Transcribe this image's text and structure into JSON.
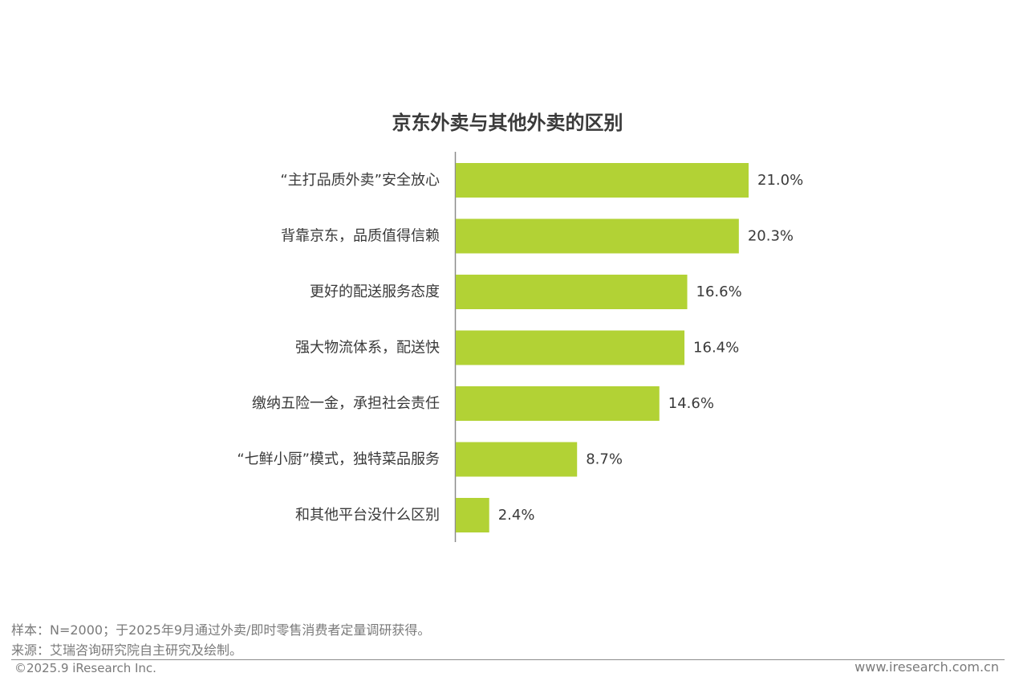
{
  "chart_data": {
    "type": "bar",
    "orientation": "horizontal",
    "title": "京东外卖与其他外卖的区别",
    "categories": [
      "“主打品质外卖”安全放心",
      "背靠京东，品质值得信赖",
      "更好的配送服务态度",
      "强大物流体系，配送快",
      "缴纳五险一金，承担社会责任",
      "“七鲜小厨”模式，独特菜品服务",
      "和其他平台没什么区别"
    ],
    "values": [
      21.0,
      20.3,
      16.6,
      16.4,
      14.6,
      8.7,
      2.4
    ],
    "value_labels": [
      "21.0%",
      "20.3%",
      "16.6%",
      "16.4%",
      "14.6%",
      "8.7%",
      "2.4%"
    ],
    "unit": "%",
    "bar_color": "#b2d235",
    "grid": false,
    "legend": "none"
  },
  "footer": {
    "sample": "样本：N=2000；于2025年9月通过外卖/即时零售消费者定量调研获得。",
    "source": "来源：艾瑞咨询研究院自主研究及绘制。",
    "copyright": "©2025.9 iResearch Inc.",
    "website": "www.iresearch.com.cn"
  }
}
